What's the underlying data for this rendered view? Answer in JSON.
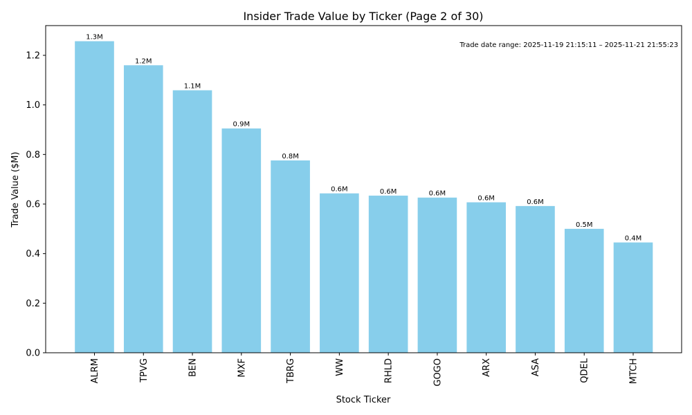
{
  "chart_data": {
    "type": "bar",
    "title": "Insider Trade Value by Ticker (Page 2 of 30)",
    "xlabel": "Stock Ticker",
    "ylabel": "Trade Value ($M)",
    "ylim": [
      0,
      1.32
    ],
    "yticks": [
      0.0,
      0.2,
      0.4,
      0.6,
      0.8,
      1.0,
      1.2
    ],
    "ytick_labels": [
      "0.0",
      "0.2",
      "0.4",
      "0.6",
      "0.8",
      "1.0",
      "1.2"
    ],
    "categories": [
      "ALRM",
      "TPVG",
      "BEN",
      "MXF",
      "TBRG",
      "WW",
      "RHLD",
      "GOGO",
      "ARX",
      "ASA",
      "QDEL",
      "MTCH"
    ],
    "values": [
      1.257,
      1.16,
      1.059,
      0.905,
      0.776,
      0.643,
      0.634,
      0.626,
      0.607,
      0.592,
      0.5,
      0.445
    ],
    "data_labels": [
      "1.3M",
      "1.2M",
      "1.1M",
      "0.9M",
      "0.8M",
      "0.6M",
      "0.6M",
      "0.6M",
      "0.6M",
      "0.6M",
      "0.5M",
      "0.4M"
    ],
    "annotation": "Trade date range: 2025-11-19 21:15:11 – 2025-11-21 21:55:23",
    "bar_color": "#87ceeb",
    "grid": false
  }
}
